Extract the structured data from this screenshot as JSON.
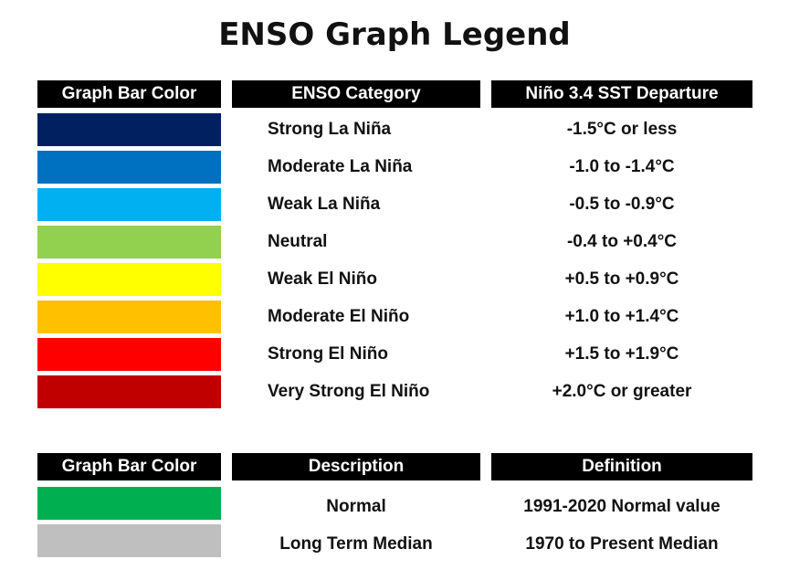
{
  "title": "ENSO Graph Legend",
  "table1": {
    "headers": [
      "Graph Bar Color",
      "ENSO Category",
      "Niño 3.4 SST Departure"
    ],
    "rows": [
      {
        "color": "#002060",
        "category": "Strong La Niña",
        "departure": "-1.5°C or less"
      },
      {
        "color": "#0070C0",
        "category": "Moderate La Niña",
        "departure": "-1.0 to -1.4°C"
      },
      {
        "color": "#00B0F0",
        "category": "Weak La Niña",
        "departure": "-0.5 to -0.9°C"
      },
      {
        "color": "#92D050",
        "category": "Neutral",
        "departure": "-0.4 to +0.4°C"
      },
      {
        "color": "#FFFF00",
        "category": "Weak El Niño",
        "departure": "+0.5 to +0.9°C"
      },
      {
        "color": "#FFC000",
        "category": "Moderate El Niño",
        "departure": "+1.0 to +1.4°C"
      },
      {
        "color": "#FF0000",
        "category": "Strong El Niño",
        "departure": "+1.5 to +1.9°C"
      },
      {
        "color": "#C00000",
        "category": "Very Strong El Niño",
        "departure": "+2.0°C or greater"
      }
    ]
  },
  "table2": {
    "headers": [
      "Graph Bar Color",
      "Description",
      "Definition"
    ],
    "rows": [
      {
        "color": "#00B050",
        "description": "Normal",
        "definition": "1991-2020 Normal value"
      },
      {
        "color": "#BFBFBF",
        "description": "Long Term Median",
        "definition": "1970 to Present Median"
      }
    ]
  }
}
